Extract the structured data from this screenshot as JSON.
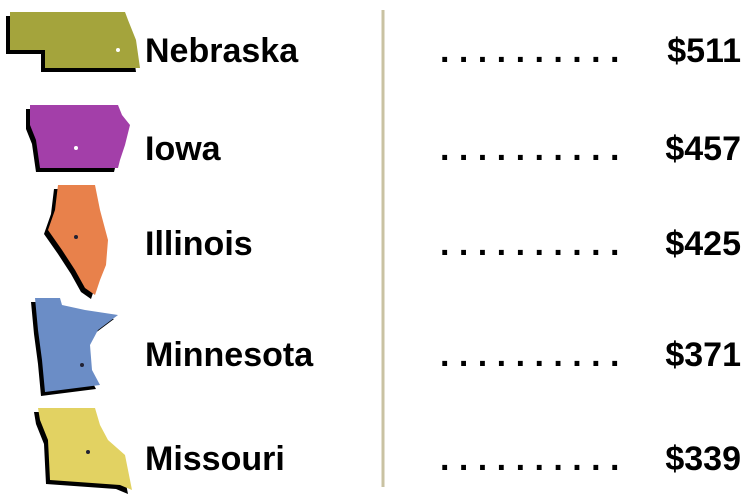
{
  "rows": [
    {
      "state": "Nebraska",
      "leader": ". . . . . . . . . .",
      "value": "$511"
    },
    {
      "state": "Iowa",
      "leader": ". . . . . . . . . .",
      "value": "$457"
    },
    {
      "state": "Illinois",
      "leader": ". . . . . . . . . .",
      "value": "$425"
    },
    {
      "state": "Minnesota",
      "leader": ". . . . . . . . . .",
      "value": "$371"
    },
    {
      "state": "Missouri",
      "leader": ". . . . . . . . . .",
      "value": "$339"
    }
  ]
}
